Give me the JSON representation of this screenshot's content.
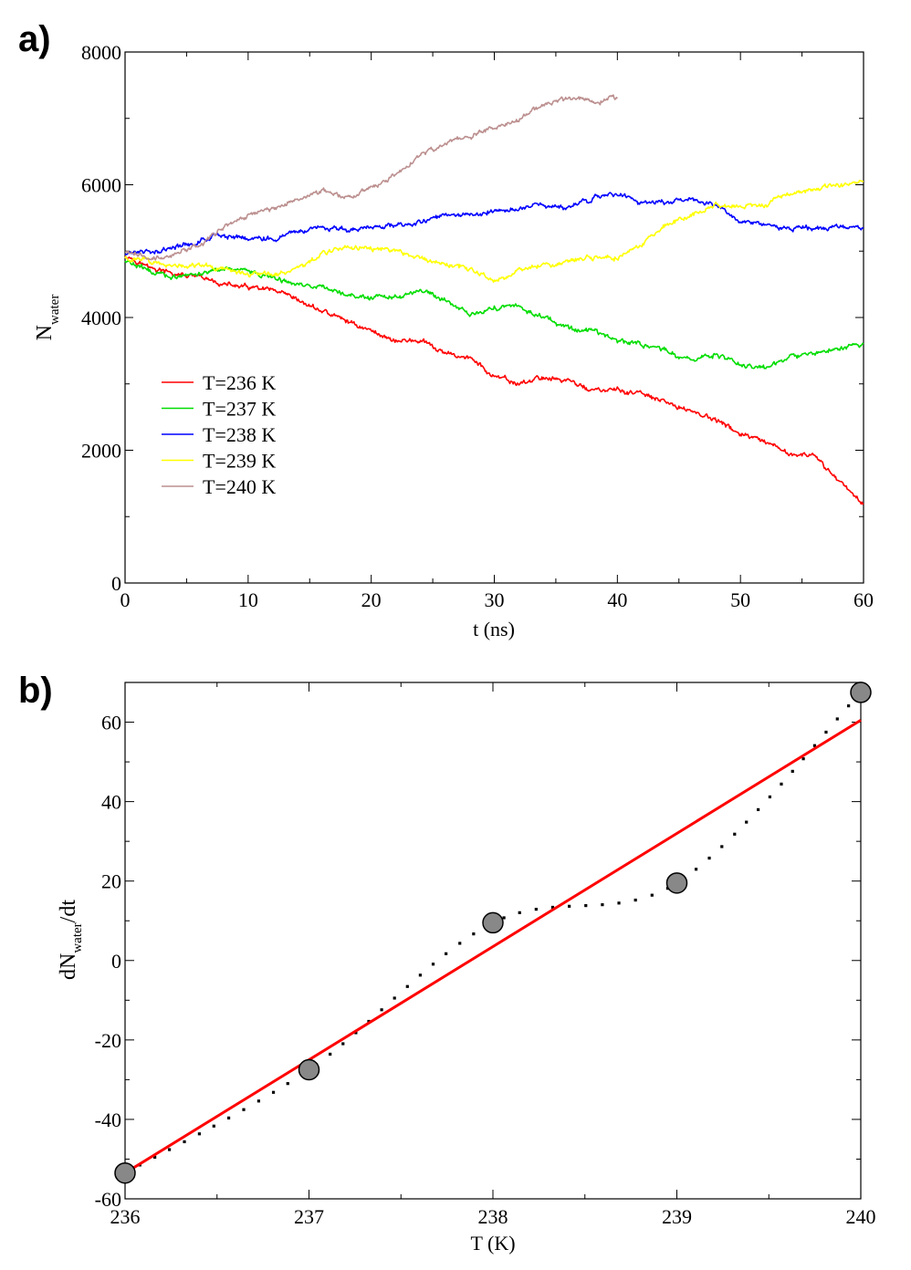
{
  "chart_data": [
    {
      "panel_label": "a)",
      "type": "line",
      "xlabel": "t (ns)",
      "ylabel_main": "N",
      "ylabel_sub": "water",
      "xlim": [
        0,
        60
      ],
      "ylim": [
        0,
        8000
      ],
      "x_ticks": [
        "0",
        "10",
        "20",
        "30",
        "40",
        "50",
        "60"
      ],
      "y_ticks": [
        "0",
        "2000",
        "4000",
        "6000",
        "8000"
      ],
      "legend_position": "left-lower",
      "series": [
        {
          "name": "T=236 K",
          "color": "#ff0000",
          "x": [
            0,
            2,
            4,
            6,
            8,
            10,
            12,
            14,
            16,
            18,
            20,
            22,
            24,
            26,
            28,
            30,
            32,
            34,
            36,
            38,
            40,
            42,
            44,
            46,
            48,
            50,
            52,
            54,
            56,
            58,
            60
          ],
          "y": [
            4950,
            4750,
            4650,
            4600,
            4500,
            4450,
            4400,
            4250,
            4100,
            3950,
            3800,
            3650,
            3650,
            3450,
            3400,
            3100,
            3000,
            3100,
            3050,
            2900,
            2900,
            2850,
            2700,
            2600,
            2450,
            2250,
            2100,
            1950,
            1900,
            1550,
            1200
          ]
        },
        {
          "name": "T=237 K",
          "color": "#00dd00",
          "x": [
            0,
            2,
            4,
            6,
            8,
            10,
            12,
            14,
            16,
            18,
            20,
            22,
            24,
            26,
            28,
            30,
            32,
            34,
            36,
            38,
            40,
            42,
            44,
            46,
            48,
            50,
            52,
            54,
            56,
            58,
            60
          ],
          "y": [
            4850,
            4700,
            4600,
            4650,
            4750,
            4700,
            4600,
            4500,
            4450,
            4350,
            4300,
            4300,
            4400,
            4250,
            4050,
            4150,
            4150,
            4000,
            3850,
            3800,
            3650,
            3600,
            3500,
            3350,
            3450,
            3300,
            3250,
            3400,
            3450,
            3550,
            3600
          ]
        },
        {
          "name": "T=238 K",
          "color": "#0000ff",
          "x": [
            0,
            2,
            4,
            6,
            8,
            10,
            12,
            14,
            16,
            18,
            20,
            22,
            24,
            26,
            28,
            30,
            32,
            34,
            36,
            38,
            40,
            42,
            44,
            46,
            48,
            50,
            52,
            54,
            56,
            58,
            60
          ],
          "y": [
            4950,
            5000,
            5050,
            5150,
            5250,
            5200,
            5200,
            5300,
            5350,
            5300,
            5350,
            5400,
            5450,
            5550,
            5550,
            5600,
            5650,
            5700,
            5650,
            5800,
            5850,
            5750,
            5750,
            5800,
            5700,
            5450,
            5400,
            5350,
            5350,
            5350,
            5350
          ]
        },
        {
          "name": "T=239 K",
          "color": "#ffff00",
          "x": [
            0,
            2,
            4,
            6,
            8,
            10,
            12,
            14,
            16,
            18,
            20,
            22,
            24,
            26,
            28,
            30,
            32,
            34,
            36,
            38,
            40,
            42,
            44,
            46,
            48,
            50,
            52,
            54,
            56,
            58,
            60
          ],
          "y": [
            4900,
            4850,
            4800,
            4800,
            4750,
            4650,
            4650,
            4750,
            4950,
            5050,
            5050,
            5000,
            4900,
            4800,
            4750,
            4550,
            4700,
            4800,
            4850,
            4900,
            4900,
            5100,
            5400,
            5550,
            5700,
            5650,
            5700,
            5850,
            5950,
            6000,
            6050
          ]
        },
        {
          "name": "T=240 K",
          "color": "#bc8f8f",
          "x": [
            0,
            2,
            4,
            6,
            8,
            10,
            12,
            14,
            16,
            18,
            20,
            22,
            24,
            26,
            28,
            30,
            32,
            34,
            36,
            38,
            40
          ],
          "y": [
            5000,
            4900,
            4950,
            5100,
            5350,
            5550,
            5650,
            5800,
            5900,
            5800,
            5950,
            6150,
            6450,
            6600,
            6750,
            6850,
            7000,
            7200,
            7300,
            7250,
            7300
          ]
        }
      ]
    },
    {
      "panel_label": "b)",
      "type": "scatter",
      "xlabel": "T (K)",
      "ylabel_prefix": "dN",
      "ylabel_sub": "water",
      "ylabel_suffix": "/dt",
      "xlim": [
        236,
        240
      ],
      "ylim": [
        -60,
        70
      ],
      "x_ticks": [
        "236",
        "237",
        "238",
        "239",
        "240"
      ],
      "y_ticks": [
        "-60",
        "-40",
        "-20",
        "0",
        "20",
        "40",
        "60"
      ],
      "points": {
        "x": [
          236,
          237,
          238,
          239,
          240
        ],
        "y": [
          -53.5,
          -27.5,
          9.5,
          19.5,
          67.5
        ],
        "color": "#888888"
      },
      "dotted_fit": {
        "color": "#000000"
      },
      "linear_fit": {
        "x": [
          236,
          240
        ],
        "y": [
          -53.5,
          60.5
        ],
        "color": "#ff0000"
      }
    }
  ]
}
